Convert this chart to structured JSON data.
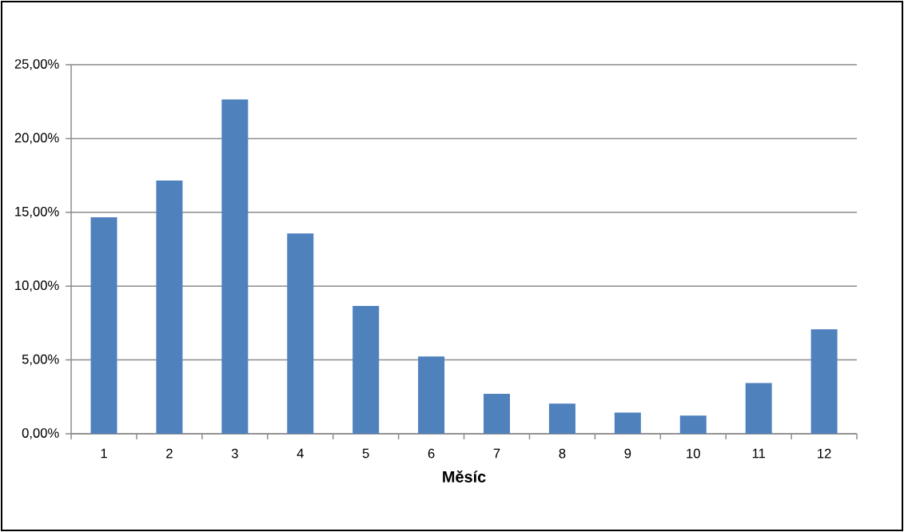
{
  "chart_data": {
    "type": "bar",
    "xlabel": "Měsíc",
    "categories": [
      "1",
      "2",
      "3",
      "4",
      "5",
      "6",
      "7",
      "8",
      "9",
      "10",
      "11",
      "12"
    ],
    "values": [
      14.66,
      17.15,
      22.64,
      13.57,
      8.66,
      5.23,
      2.71,
      2.04,
      1.44,
      1.23,
      3.43,
      7.08
    ],
    "color": "#4f81bd",
    "ylim": [
      0,
      25
    ],
    "yticks": [
      {
        "value": 0,
        "label": "0,00%"
      },
      {
        "value": 5,
        "label": "5,00%"
      },
      {
        "value": 10,
        "label": "10,00%"
      },
      {
        "value": 15,
        "label": "15,00%"
      },
      {
        "value": 20,
        "label": "20,00%"
      },
      {
        "value": 25,
        "label": "25,00%"
      }
    ],
    "grid": "y"
  }
}
